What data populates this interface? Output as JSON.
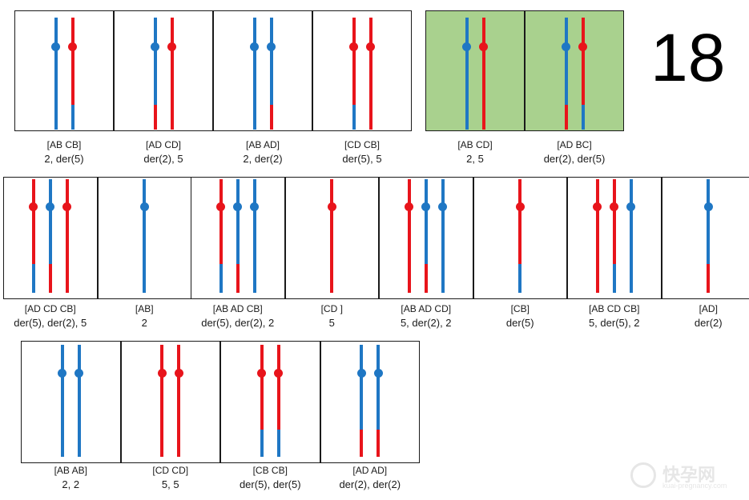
{
  "big_number": "18",
  "colors": {
    "blue": "#1f77c4",
    "red": "#e8141b",
    "highlight": "#a9d18e"
  },
  "rows": [
    {
      "panels": [
        {
          "label1": "[AB CB]",
          "label2": "2, der(5)",
          "highlight": false,
          "chroms": [
            {
              "top": "blue",
              "bottom": "blue"
            },
            {
              "top": "red",
              "bottom": "blue"
            }
          ]
        },
        {
          "label1": "[AD CD]",
          "label2": "der(2), 5",
          "highlight": false,
          "chroms": [
            {
              "top": "blue",
              "bottom": "red"
            },
            {
              "top": "red",
              "bottom": "red"
            }
          ]
        },
        {
          "label1": "[AB AD]",
          "label2": "2, der(2)",
          "highlight": false,
          "chroms": [
            {
              "top": "blue",
              "bottom": "blue"
            },
            {
              "top": "blue",
              "bottom": "red"
            }
          ]
        },
        {
          "label1": "[CD CB]",
          "label2": "der(5), 5",
          "highlight": false,
          "chroms": [
            {
              "top": "red",
              "bottom": "blue"
            },
            {
              "top": "red",
              "bottom": "red"
            }
          ]
        },
        {
          "label1": "[AB CD]",
          "label2": "2, 5",
          "highlight": true,
          "chroms": [
            {
              "top": "blue",
              "bottom": "blue"
            },
            {
              "top": "red",
              "bottom": "red"
            }
          ]
        },
        {
          "label1": "[AD BC]",
          "label2": "der(2), der(5)",
          "highlight": true,
          "chroms": [
            {
              "top": "blue",
              "bottom": "red"
            },
            {
              "top": "red",
              "bottom": "blue"
            }
          ]
        }
      ]
    },
    {
      "panels": [
        {
          "label1": "[AD CD CB]",
          "label2": "der(5), der(2), 5",
          "highlight": false,
          "chroms": [
            {
              "top": "red",
              "bottom": "blue"
            },
            {
              "top": "blue",
              "bottom": "red"
            },
            {
              "top": "red",
              "bottom": "red"
            }
          ]
        },
        {
          "label1": "[AB]",
          "label2": "2",
          "highlight": false,
          "chroms": [
            {
              "top": "blue",
              "bottom": "blue"
            }
          ]
        },
        {
          "label1": "[AB AD CB]",
          "label2": "der(5), der(2), 2",
          "highlight": false,
          "chroms": [
            {
              "top": "red",
              "bottom": "blue"
            },
            {
              "top": "blue",
              "bottom": "red"
            },
            {
              "top": "blue",
              "bottom": "blue"
            }
          ]
        },
        {
          "label1": "[CD ]",
          "label2": "5",
          "highlight": false,
          "chroms": [
            {
              "top": "red",
              "bottom": "red"
            }
          ]
        },
        {
          "label1": "[AB AD CD]",
          "label2": "5, der(2), 2",
          "highlight": false,
          "chroms": [
            {
              "top": "red",
              "bottom": "red"
            },
            {
              "top": "blue",
              "bottom": "red"
            },
            {
              "top": "blue",
              "bottom": "blue"
            }
          ]
        },
        {
          "label1": "[CB]",
          "label2": "der(5)",
          "highlight": false,
          "chroms": [
            {
              "top": "red",
              "bottom": "blue"
            }
          ]
        },
        {
          "label1": "[AB CD CB]",
          "label2": "5, der(5), 2",
          "highlight": false,
          "chroms": [
            {
              "top": "red",
              "bottom": "red"
            },
            {
              "top": "red",
              "bottom": "blue"
            },
            {
              "top": "blue",
              "bottom": "blue"
            }
          ]
        },
        {
          "label1": "[AD]",
          "label2": "der(2)",
          "highlight": false,
          "chroms": [
            {
              "top": "blue",
              "bottom": "red"
            }
          ]
        }
      ]
    },
    {
      "panels": [
        {
          "label1": "[AB AB]",
          "label2": "2, 2",
          "highlight": false,
          "chroms": [
            {
              "top": "blue",
              "bottom": "blue"
            },
            {
              "top": "blue",
              "bottom": "blue"
            }
          ]
        },
        {
          "label1": "[CD CD]",
          "label2": "5, 5",
          "highlight": false,
          "chroms": [
            {
              "top": "red",
              "bottom": "red"
            },
            {
              "top": "red",
              "bottom": "red"
            }
          ]
        },
        {
          "label1": "[CB CB]",
          "label2": "der(5), der(5)",
          "highlight": false,
          "chroms": [
            {
              "top": "red",
              "bottom": "blue"
            },
            {
              "top": "red",
              "bottom": "blue"
            }
          ]
        },
        {
          "label1": "[AD AD]",
          "label2": "der(2), der(2)",
          "highlight": false,
          "chroms": [
            {
              "top": "blue",
              "bottom": "red"
            },
            {
              "top": "blue",
              "bottom": "red"
            }
          ]
        }
      ]
    }
  ],
  "watermark": {
    "title": "快孕网",
    "url": "kuai-pregnancy.com"
  }
}
